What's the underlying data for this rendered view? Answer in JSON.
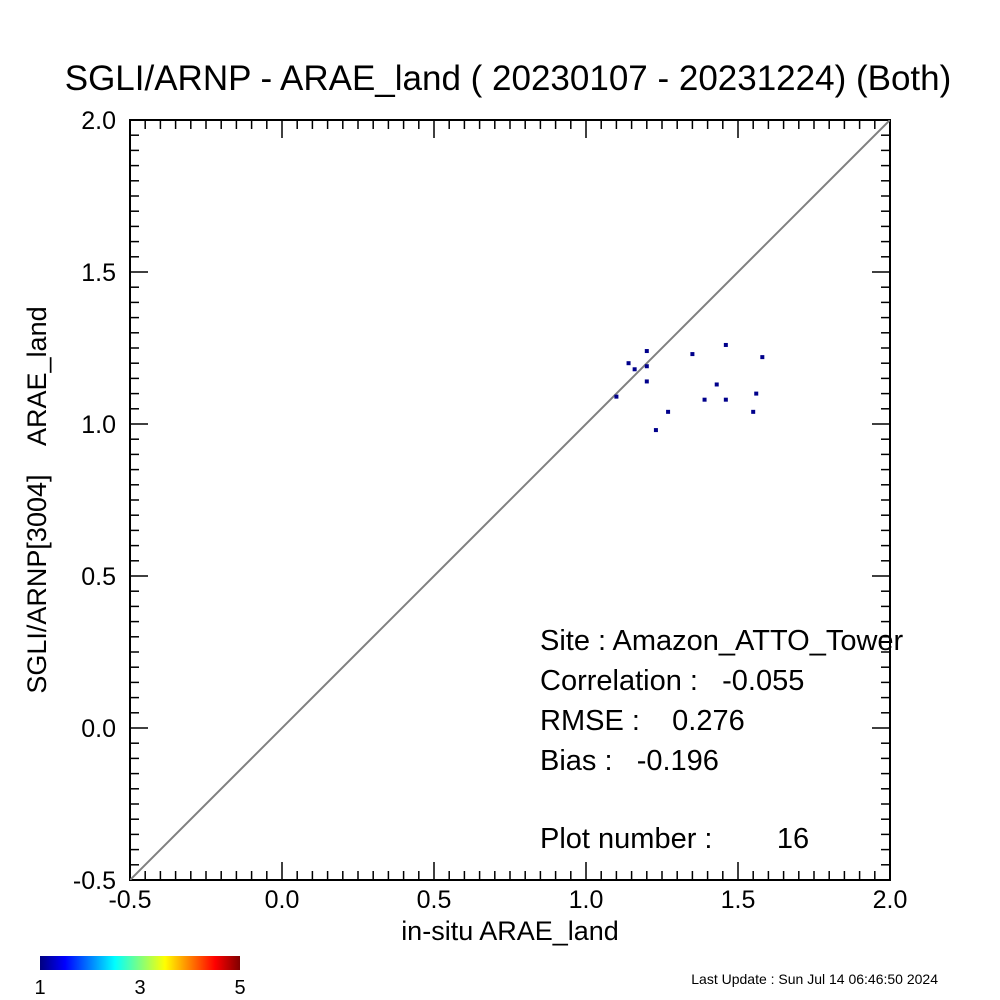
{
  "chart_data": {
    "type": "scatter",
    "title": "SGLI/ARNP - ARAE_land ( 20230107 - 20231224) (Both)",
    "xlabel": "in-situ ARAE_land",
    "ylabel": "SGLI/ARNP[3004]    ARAE_land",
    "xlim": [
      -0.5,
      2.0
    ],
    "ylim": [
      -0.5,
      2.0
    ],
    "x_ticks": [
      "-0.5",
      "0.0",
      "0.5",
      "1.0",
      "1.5",
      "2.0"
    ],
    "y_ticks": [
      "-0.5",
      "0.0",
      "0.5",
      "1.0",
      "1.5",
      "2.0"
    ],
    "grid": false,
    "reference_line": "1:1",
    "marker_color": "#00008b",
    "line_color": "#808080",
    "points": [
      {
        "x": 1.1,
        "y": 1.09
      },
      {
        "x": 1.14,
        "y": 1.2
      },
      {
        "x": 1.16,
        "y": 1.18
      },
      {
        "x": 1.2,
        "y": 1.24
      },
      {
        "x": 1.2,
        "y": 1.19
      },
      {
        "x": 1.2,
        "y": 1.14
      },
      {
        "x": 1.23,
        "y": 0.98
      },
      {
        "x": 1.27,
        "y": 1.04
      },
      {
        "x": 1.35,
        "y": 1.23
      },
      {
        "x": 1.39,
        "y": 1.08
      },
      {
        "x": 1.43,
        "y": 1.13
      },
      {
        "x": 1.46,
        "y": 1.26
      },
      {
        "x": 1.46,
        "y": 1.08
      },
      {
        "x": 1.55,
        "y": 1.04
      },
      {
        "x": 1.56,
        "y": 1.1
      },
      {
        "x": 1.58,
        "y": 1.22
      }
    ],
    "stats": {
      "site": "Site : Amazon_ATTO_Tower",
      "correlation": "Correlation :   -0.055",
      "rmse": "RMSE :    0.276",
      "bias": "Bias :   -0.196",
      "plot_number": "Plot number :        16"
    },
    "colorbar": {
      "min_label": "1",
      "mid_label": "3",
      "max_label": "5",
      "colors": [
        "#00007f",
        "#0000ff",
        "#007fff",
        "#00ffff",
        "#7fff7f",
        "#ffff00",
        "#ff7f00",
        "#ff0000",
        "#7f0000"
      ]
    }
  },
  "footer": {
    "last_update": "Last Update : Sun Jul 14 06:46:50 2024"
  }
}
